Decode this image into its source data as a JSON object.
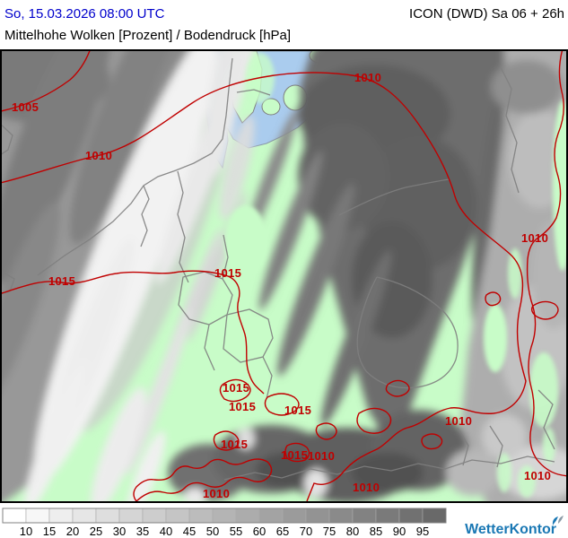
{
  "header": {
    "datetime": "So, 15.03.2026 08:00 UTC",
    "model_info": "ICON (DWD) Sa 06 + 26h",
    "layer_title": "Mittelhohe Wolken [Prozent] / Bodendruck [hPa]"
  },
  "map": {
    "land_color": "#c8fcc8",
    "sea_color": "#aaccee",
    "country_border_color": "#7f7f7f",
    "isobar_color": "#c00000",
    "isobar_labels": [
      {
        "value": "1005"
      },
      {
        "value": "1010"
      },
      {
        "value": "1010"
      },
      {
        "value": "1010"
      },
      {
        "value": "1015"
      },
      {
        "value": "1015"
      },
      {
        "value": "1015"
      },
      {
        "value": "1015"
      },
      {
        "value": "1015"
      },
      {
        "value": "1015"
      },
      {
        "value": "1015"
      },
      {
        "value": "1010"
      },
      {
        "value": "1010"
      },
      {
        "value": "1010"
      },
      {
        "value": "1010"
      },
      {
        "value": "1010"
      }
    ]
  },
  "legend": {
    "ticks": [
      "10",
      "15",
      "20",
      "25",
      "30",
      "35",
      "40",
      "45",
      "50",
      "55",
      "60",
      "65",
      "70",
      "75",
      "80",
      "85",
      "90",
      "95"
    ],
    "cell_colors": [
      "#ffffff",
      "#f7f7f7",
      "#eeeeee",
      "#e6e6e6",
      "#dedede",
      "#d5d5d5",
      "#cdcdcd",
      "#c5c5c5",
      "#bcbcbc",
      "#b4b4b4",
      "#acacac",
      "#a3a3a3",
      "#9b9b9b",
      "#939393",
      "#8a8a8a",
      "#828282",
      "#7a7a7a",
      "#717171",
      "#696969"
    ]
  },
  "branding": {
    "logo_text": "WetterKontor",
    "logo_color": "#1a78b4"
  }
}
